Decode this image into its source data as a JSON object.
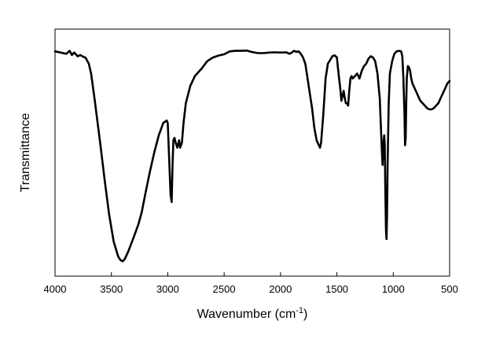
{
  "chart_data": {
    "type": "line",
    "xlabel": "Wavenumber (cm",
    "xlabel_sup": "-1",
    "xlabel_close": ")",
    "ylabel": "Transmittance",
    "xlim": [
      4000,
      500
    ],
    "ylim": [
      0,
      1
    ],
    "x_reversed": true,
    "y_ticks_shown": false,
    "grid": false,
    "legend": "none",
    "x_ticks": [
      4000,
      3500,
      3000,
      2500,
      2000,
      1500,
      1000,
      500
    ],
    "x_tick_labels": [
      "4000",
      "3500",
      "3000",
      "2500",
      "2000",
      "1500",
      "1000",
      "500"
    ],
    "series": [
      {
        "color": "#000000",
        "points": [
          [
            4000,
            0.91
          ],
          [
            3950,
            0.905
          ],
          [
            3900,
            0.9
          ],
          [
            3870,
            0.912
          ],
          [
            3850,
            0.895
          ],
          [
            3830,
            0.905
          ],
          [
            3800,
            0.89
          ],
          [
            3775,
            0.895
          ],
          [
            3750,
            0.888
          ],
          [
            3730,
            0.885
          ],
          [
            3700,
            0.86
          ],
          [
            3680,
            0.82
          ],
          [
            3650,
            0.72
          ],
          [
            3600,
            0.54
          ],
          [
            3560,
            0.39
          ],
          [
            3520,
            0.25
          ],
          [
            3480,
            0.14
          ],
          [
            3440,
            0.08
          ],
          [
            3420,
            0.065
          ],
          [
            3400,
            0.06
          ],
          [
            3380,
            0.07
          ],
          [
            3350,
            0.1
          ],
          [
            3300,
            0.16
          ],
          [
            3260,
            0.21
          ],
          [
            3230,
            0.26
          ],
          [
            3200,
            0.33
          ],
          [
            3160,
            0.42
          ],
          [
            3120,
            0.5
          ],
          [
            3080,
            0.57
          ],
          [
            3040,
            0.62
          ],
          [
            3010,
            0.63
          ],
          [
            3000,
            0.62
          ],
          [
            2990,
            0.5
          ],
          [
            2975,
            0.33
          ],
          [
            2965,
            0.3
          ],
          [
            2958,
            0.45
          ],
          [
            2950,
            0.55
          ],
          [
            2940,
            0.56
          ],
          [
            2930,
            0.54
          ],
          [
            2915,
            0.52
          ],
          [
            2900,
            0.55
          ],
          [
            2890,
            0.52
          ],
          [
            2875,
            0.54
          ],
          [
            2860,
            0.62
          ],
          [
            2840,
            0.7
          ],
          [
            2800,
            0.77
          ],
          [
            2760,
            0.81
          ],
          [
            2700,
            0.84
          ],
          [
            2650,
            0.87
          ],
          [
            2600,
            0.885
          ],
          [
            2550,
            0.893
          ],
          [
            2500,
            0.898
          ],
          [
            2450,
            0.91
          ],
          [
            2400,
            0.912
          ],
          [
            2350,
            0.912
          ],
          [
            2300,
            0.913
          ],
          [
            2250,
            0.907
          ],
          [
            2200,
            0.903
          ],
          [
            2150,
            0.903
          ],
          [
            2100,
            0.905
          ],
          [
            2050,
            0.906
          ],
          [
            2000,
            0.905
          ],
          [
            1950,
            0.906
          ],
          [
            1920,
            0.9
          ],
          [
            1900,
            0.905
          ],
          [
            1880,
            0.912
          ],
          [
            1860,
            0.908
          ],
          [
            1840,
            0.91
          ],
          [
            1820,
            0.9
          ],
          [
            1800,
            0.885
          ],
          [
            1780,
            0.86
          ],
          [
            1760,
            0.8
          ],
          [
            1740,
            0.74
          ],
          [
            1720,
            0.68
          ],
          [
            1700,
            0.6
          ],
          [
            1680,
            0.55
          ],
          [
            1660,
            0.53
          ],
          [
            1650,
            0.52
          ],
          [
            1640,
            0.54
          ],
          [
            1620,
            0.66
          ],
          [
            1600,
            0.8
          ],
          [
            1580,
            0.86
          ],
          [
            1560,
            0.875
          ],
          [
            1540,
            0.89
          ],
          [
            1520,
            0.894
          ],
          [
            1500,
            0.885
          ],
          [
            1490,
            0.84
          ],
          [
            1480,
            0.8
          ],
          [
            1470,
            0.76
          ],
          [
            1460,
            0.71
          ],
          [
            1450,
            0.73
          ],
          [
            1440,
            0.75
          ],
          [
            1430,
            0.72
          ],
          [
            1420,
            0.7
          ],
          [
            1410,
            0.7
          ],
          [
            1400,
            0.69
          ],
          [
            1390,
            0.75
          ],
          [
            1380,
            0.8
          ],
          [
            1370,
            0.81
          ],
          [
            1360,
            0.8
          ],
          [
            1340,
            0.81
          ],
          [
            1320,
            0.82
          ],
          [
            1300,
            0.8
          ],
          [
            1280,
            0.83
          ],
          [
            1260,
            0.85
          ],
          [
            1240,
            0.86
          ],
          [
            1220,
            0.88
          ],
          [
            1200,
            0.89
          ],
          [
            1180,
            0.885
          ],
          [
            1160,
            0.87
          ],
          [
            1140,
            0.82
          ],
          [
            1120,
            0.72
          ],
          [
            1100,
            0.5
          ],
          [
            1095,
            0.45
          ],
          [
            1090,
            0.5
          ],
          [
            1085,
            0.55
          ],
          [
            1080,
            0.57
          ],
          [
            1075,
            0.53
          ],
          [
            1070,
            0.35
          ],
          [
            1065,
            0.19
          ],
          [
            1060,
            0.15
          ],
          [
            1055,
            0.25
          ],
          [
            1050,
            0.45
          ],
          [
            1040,
            0.7
          ],
          [
            1030,
            0.82
          ],
          [
            1010,
            0.87
          ],
          [
            990,
            0.9
          ],
          [
            970,
            0.91
          ],
          [
            950,
            0.912
          ],
          [
            930,
            0.91
          ],
          [
            920,
            0.89
          ],
          [
            910,
            0.8
          ],
          [
            900,
            0.65
          ],
          [
            895,
            0.53
          ],
          [
            890,
            0.56
          ],
          [
            885,
            0.7
          ],
          [
            880,
            0.8
          ],
          [
            870,
            0.85
          ],
          [
            860,
            0.845
          ],
          [
            850,
            0.83
          ],
          [
            840,
            0.8
          ],
          [
            830,
            0.78
          ],
          [
            820,
            0.77
          ],
          [
            800,
            0.75
          ],
          [
            780,
            0.73
          ],
          [
            760,
            0.71
          ],
          [
            740,
            0.7
          ],
          [
            720,
            0.69
          ],
          [
            700,
            0.68
          ],
          [
            680,
            0.675
          ],
          [
            660,
            0.675
          ],
          [
            640,
            0.68
          ],
          [
            620,
            0.69
          ],
          [
            600,
            0.7
          ],
          [
            580,
            0.72
          ],
          [
            560,
            0.74
          ],
          [
            540,
            0.76
          ],
          [
            520,
            0.78
          ],
          [
            500,
            0.79
          ]
        ]
      }
    ]
  }
}
